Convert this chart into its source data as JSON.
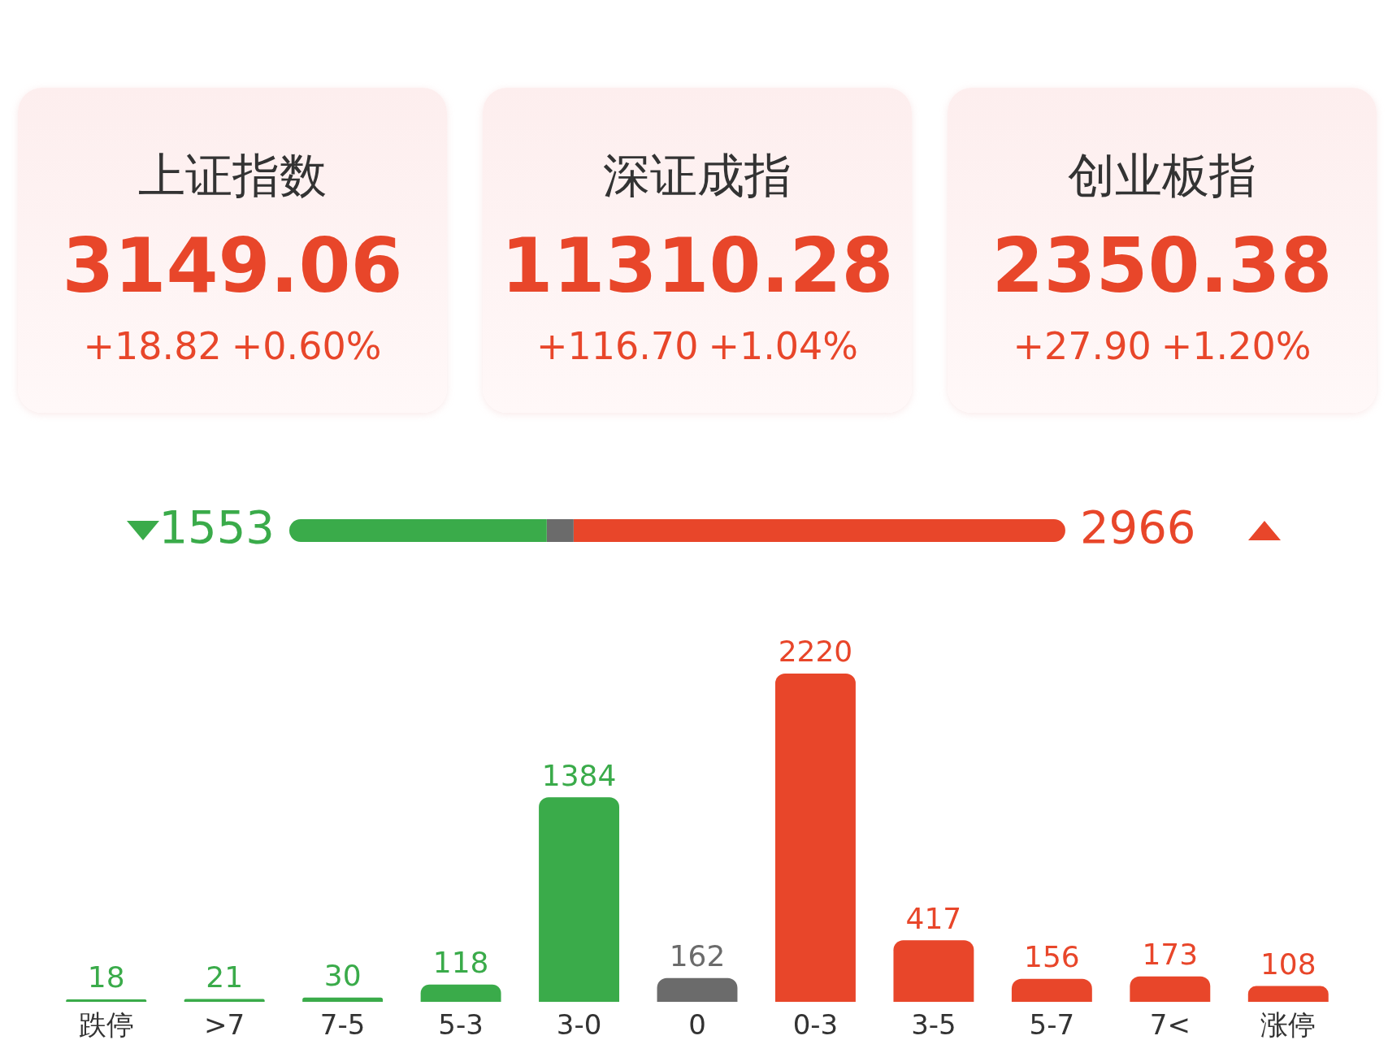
{
  "chart_data": [
    {
      "type": "other",
      "annotations": [
        "上证指数",
        "3149.06",
        "+18.82",
        "+0.60%",
        "深证成指",
        "11310.28",
        "+116.70",
        "+1.04%",
        "创业板指",
        "2350.38",
        "+27.90",
        "+1.20%"
      ]
    },
    {
      "type": "bar",
      "orientation": "horizontal",
      "stacked": true,
      "categories": [
        null
      ],
      "series": [
        {
          "color": "#3aab4a",
          "values": [
            1553
          ],
          "value_labels": [
            "1553"
          ]
        },
        {
          "color": "#6b6b6b",
          "values": [
            162
          ],
          "value_labels": [
            null
          ]
        },
        {
          "color": "#e8462a",
          "values": [
            2966
          ],
          "value_labels": [
            "2966"
          ]
        }
      ]
    },
    {
      "type": "bar",
      "categories": [
        "跌停",
        ">7",
        "7-5",
        "5-3",
        "3-0",
        "0",
        "0-3",
        "3-5",
        "5-7",
        "7<",
        "涨停"
      ],
      "values": [
        18,
        21,
        30,
        118,
        1384,
        162,
        2220,
        417,
        156,
        173,
        108
      ],
      "colors": [
        "#3aab4a",
        "#3aab4a",
        "#3aab4a",
        "#3aab4a",
        "#3aab4a",
        "#6b6b6b",
        "#e8462a",
        "#e8462a",
        "#e8462a",
        "#e8462a",
        "#e8462a"
      ],
      "data_labels": true
    }
  ]
}
